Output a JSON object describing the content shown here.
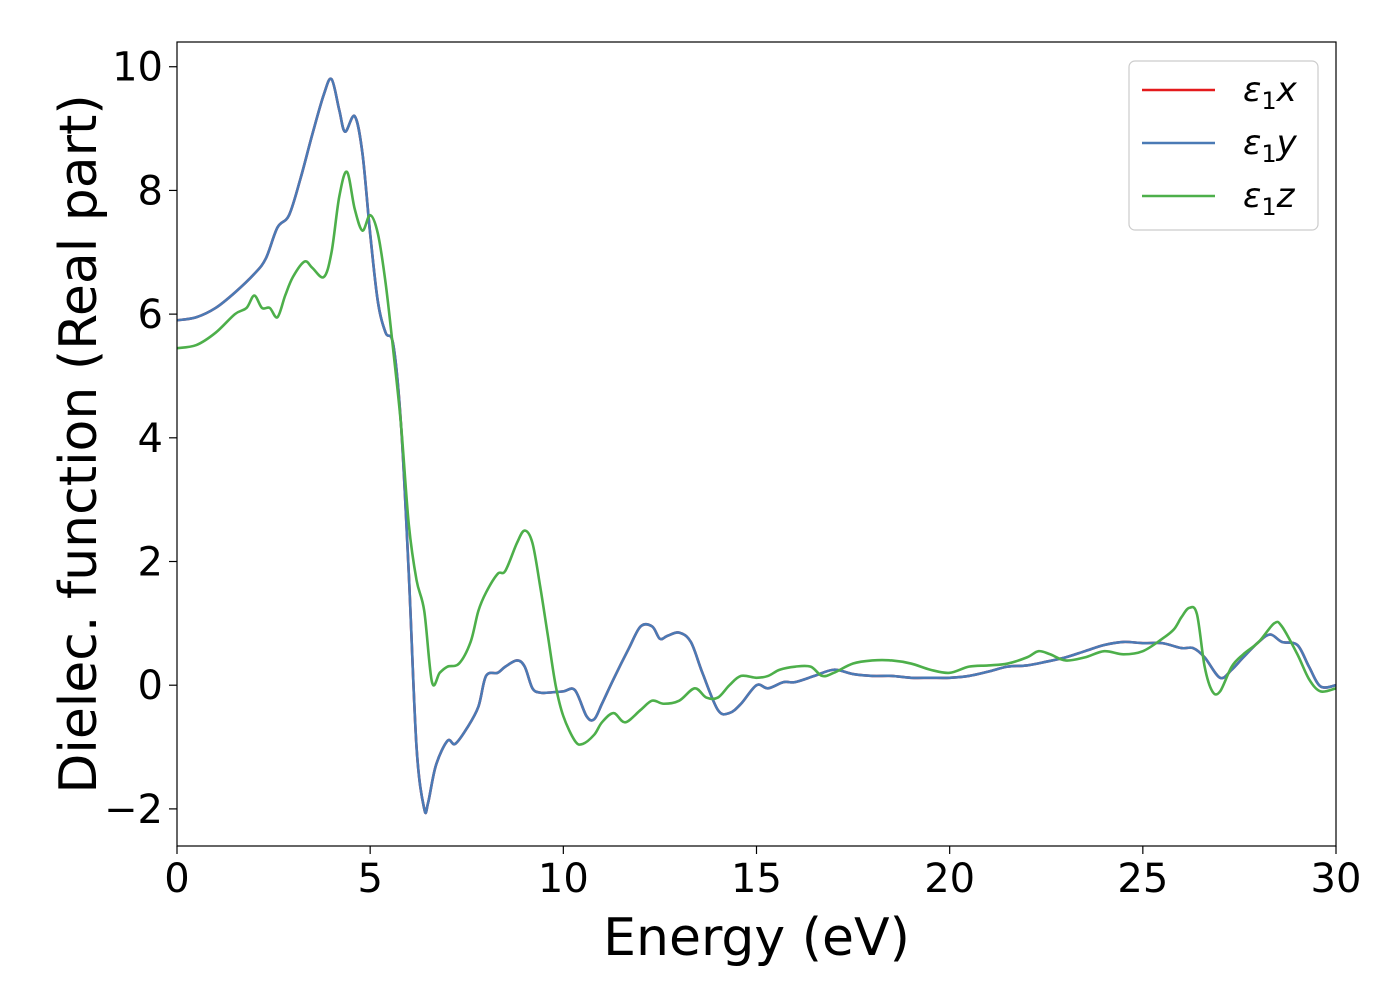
{
  "chart_data": {
    "type": "line",
    "xlabel": "Energy (eV)",
    "ylabel": "Dielec. function (Real part)",
    "xlim": [
      0,
      30
    ],
    "ylim": [
      -2.6,
      10.4
    ],
    "xticks": [
      0,
      5,
      10,
      15,
      20,
      25,
      30
    ],
    "xtick_labels": [
      "0",
      "5",
      "10",
      "15",
      "20",
      "25",
      "30"
    ],
    "yticks": [
      -2,
      0,
      2,
      4,
      6,
      8,
      10
    ],
    "ytick_labels": [
      "−2",
      "0",
      "2",
      "4",
      "6",
      "8",
      "10"
    ],
    "grid": false,
    "legend_position": "top-right",
    "series": [
      {
        "name": "ε1x",
        "legend_main": "ε",
        "legend_sub": "1",
        "legend_suffix": "x",
        "color": "#e41a1c",
        "x": [
          0,
          0.5,
          1.0,
          1.5,
          2.0,
          2.3,
          2.6,
          2.9,
          3.2,
          3.5,
          3.8,
          4.0,
          4.2,
          4.35,
          4.6,
          4.8,
          5.0,
          5.2,
          5.4,
          5.6,
          5.8,
          6.0,
          6.2,
          6.4,
          6.5,
          6.7,
          7.0,
          7.2,
          7.5,
          7.8,
          8.0,
          8.3,
          8.5,
          8.8,
          9.0,
          9.2,
          9.4,
          9.6,
          10.0,
          10.3,
          10.6,
          10.8,
          11.0,
          11.3,
          11.7,
          12.0,
          12.3,
          12.5,
          12.7,
          13.0,
          13.3,
          13.6,
          14.0,
          14.3,
          14.6,
          15.0,
          15.3,
          15.7,
          16.0,
          16.5,
          17.0,
          17.5,
          18.0,
          18.5,
          19.0,
          19.5,
          20.0,
          20.5,
          21.0,
          21.5,
          22.0,
          22.5,
          23.0,
          23.5,
          24.0,
          24.5,
          25.0,
          25.5,
          26.0,
          26.3,
          26.6,
          27.0,
          27.3,
          27.6,
          28.0,
          28.3,
          28.6,
          29.0,
          29.3,
          29.6,
          30.0
        ],
        "y": [
          5.9,
          5.95,
          6.1,
          6.35,
          6.65,
          6.9,
          7.4,
          7.6,
          8.2,
          8.9,
          9.55,
          9.8,
          9.3,
          8.95,
          9.2,
          8.6,
          7.3,
          6.2,
          5.7,
          5.5,
          4.2,
          1.8,
          -1.0,
          -2.0,
          -1.9,
          -1.3,
          -0.9,
          -0.95,
          -0.7,
          -0.35,
          0.15,
          0.2,
          0.3,
          0.4,
          0.3,
          -0.05,
          -0.12,
          -0.12,
          -0.1,
          -0.08,
          -0.5,
          -0.55,
          -0.3,
          0.1,
          0.6,
          0.95,
          0.95,
          0.75,
          0.8,
          0.85,
          0.7,
          0.2,
          -0.4,
          -0.45,
          -0.3,
          0.0,
          -0.05,
          0.05,
          0.05,
          0.15,
          0.25,
          0.18,
          0.15,
          0.15,
          0.12,
          0.12,
          0.12,
          0.15,
          0.22,
          0.3,
          0.32,
          0.38,
          0.45,
          0.55,
          0.65,
          0.7,
          0.68,
          0.68,
          0.6,
          0.6,
          0.45,
          0.12,
          0.25,
          0.45,
          0.7,
          0.82,
          0.7,
          0.65,
          0.3,
          -0.02,
          0.0
        ]
      },
      {
        "name": "ε1y",
        "legend_main": "ε",
        "legend_sub": "1",
        "legend_suffix": "y",
        "color": "#4a7ab5",
        "x": [
          0,
          0.5,
          1.0,
          1.5,
          2.0,
          2.3,
          2.6,
          2.9,
          3.2,
          3.5,
          3.8,
          4.0,
          4.2,
          4.35,
          4.6,
          4.8,
          5.0,
          5.2,
          5.4,
          5.6,
          5.8,
          6.0,
          6.2,
          6.4,
          6.5,
          6.7,
          7.0,
          7.2,
          7.5,
          7.8,
          8.0,
          8.3,
          8.5,
          8.8,
          9.0,
          9.2,
          9.4,
          9.6,
          10.0,
          10.3,
          10.6,
          10.8,
          11.0,
          11.3,
          11.7,
          12.0,
          12.3,
          12.5,
          12.7,
          13.0,
          13.3,
          13.6,
          14.0,
          14.3,
          14.6,
          15.0,
          15.3,
          15.7,
          16.0,
          16.5,
          17.0,
          17.5,
          18.0,
          18.5,
          19.0,
          19.5,
          20.0,
          20.5,
          21.0,
          21.5,
          22.0,
          22.5,
          23.0,
          23.5,
          24.0,
          24.5,
          25.0,
          25.5,
          26.0,
          26.3,
          26.6,
          27.0,
          27.3,
          27.6,
          28.0,
          28.3,
          28.6,
          29.0,
          29.3,
          29.6,
          30.0
        ],
        "y": [
          5.9,
          5.95,
          6.1,
          6.35,
          6.65,
          6.9,
          7.4,
          7.6,
          8.2,
          8.9,
          9.55,
          9.8,
          9.3,
          8.95,
          9.2,
          8.6,
          7.3,
          6.2,
          5.7,
          5.5,
          4.2,
          1.8,
          -1.0,
          -2.0,
          -1.9,
          -1.3,
          -0.9,
          -0.95,
          -0.7,
          -0.35,
          0.15,
          0.2,
          0.3,
          0.4,
          0.3,
          -0.05,
          -0.12,
          -0.12,
          -0.1,
          -0.08,
          -0.5,
          -0.55,
          -0.3,
          0.1,
          0.6,
          0.95,
          0.95,
          0.75,
          0.8,
          0.85,
          0.7,
          0.2,
          -0.4,
          -0.45,
          -0.3,
          0.0,
          -0.05,
          0.05,
          0.05,
          0.15,
          0.25,
          0.18,
          0.15,
          0.15,
          0.12,
          0.12,
          0.12,
          0.15,
          0.22,
          0.3,
          0.32,
          0.38,
          0.45,
          0.55,
          0.65,
          0.7,
          0.68,
          0.68,
          0.6,
          0.6,
          0.45,
          0.12,
          0.25,
          0.45,
          0.7,
          0.82,
          0.7,
          0.65,
          0.3,
          -0.02,
          0.0
        ]
      },
      {
        "name": "ε1z",
        "legend_main": "ε",
        "legend_sub": "1",
        "legend_suffix": "z",
        "color": "#4daf4a",
        "x": [
          0,
          0.5,
          1.0,
          1.5,
          1.8,
          2.0,
          2.2,
          2.4,
          2.6,
          2.8,
          3.0,
          3.3,
          3.5,
          3.8,
          4.0,
          4.2,
          4.4,
          4.6,
          4.8,
          5.0,
          5.2,
          5.4,
          5.6,
          5.8,
          6.0,
          6.2,
          6.4,
          6.6,
          6.8,
          7.0,
          7.3,
          7.6,
          7.8,
          8.0,
          8.3,
          8.5,
          8.8,
          9.0,
          9.2,
          9.4,
          9.6,
          9.8,
          10.0,
          10.3,
          10.5,
          10.8,
          11.0,
          11.3,
          11.6,
          12.0,
          12.3,
          12.6,
          13.0,
          13.4,
          13.7,
          14.0,
          14.3,
          14.6,
          15.0,
          15.3,
          15.6,
          16.0,
          16.4,
          16.7,
          17.0,
          17.5,
          18.0,
          18.5,
          19.0,
          19.5,
          20.0,
          20.5,
          21.0,
          21.5,
          22.0,
          22.3,
          22.6,
          23.0,
          23.5,
          24.0,
          24.5,
          25.0,
          25.5,
          25.8,
          26.0,
          26.2,
          26.4,
          26.6,
          26.8,
          27.0,
          27.3,
          27.6,
          28.0,
          28.4,
          28.6,
          29.0,
          29.3,
          29.6,
          30.0
        ],
        "y": [
          5.45,
          5.5,
          5.7,
          6.0,
          6.1,
          6.3,
          6.1,
          6.1,
          5.95,
          6.3,
          6.6,
          6.85,
          6.75,
          6.6,
          7.0,
          7.9,
          8.3,
          7.7,
          7.35,
          7.6,
          7.3,
          6.5,
          5.4,
          4.2,
          2.6,
          1.7,
          1.2,
          0.05,
          0.2,
          0.3,
          0.35,
          0.7,
          1.2,
          1.5,
          1.8,
          1.85,
          2.3,
          2.5,
          2.3,
          1.6,
          0.8,
          0.0,
          -0.5,
          -0.9,
          -0.95,
          -0.8,
          -0.6,
          -0.45,
          -0.6,
          -0.4,
          -0.25,
          -0.3,
          -0.25,
          -0.05,
          -0.2,
          -0.2,
          0.0,
          0.15,
          0.12,
          0.15,
          0.25,
          0.3,
          0.3,
          0.15,
          0.2,
          0.35,
          0.4,
          0.4,
          0.35,
          0.25,
          0.2,
          0.3,
          0.32,
          0.35,
          0.45,
          0.55,
          0.5,
          0.4,
          0.45,
          0.55,
          0.5,
          0.55,
          0.75,
          0.9,
          1.1,
          1.25,
          1.15,
          0.3,
          -0.1,
          -0.1,
          0.3,
          0.5,
          0.7,
          1.0,
          0.95,
          0.5,
          0.1,
          -0.1,
          -0.05
        ]
      }
    ]
  }
}
